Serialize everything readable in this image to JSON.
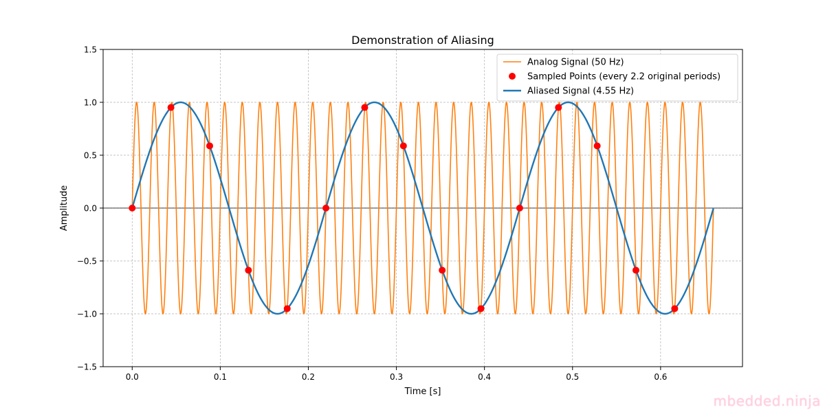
{
  "chart_data": {
    "type": "line",
    "title": "Demonstration of Aliasing",
    "xlabel": "Time [s]",
    "ylabel": "Amplitude",
    "xlim": [
      -0.033,
      0.693
    ],
    "ylim": [
      -1.5,
      1.5
    ],
    "xticks": [
      0.0,
      0.1,
      0.2,
      0.3,
      0.4,
      0.5,
      0.6
    ],
    "xtick_labels": [
      "0.0",
      "0.1",
      "0.2",
      "0.3",
      "0.4",
      "0.5",
      "0.6"
    ],
    "yticks": [
      -1.5,
      -1.0,
      -0.5,
      0.0,
      0.5,
      1.0,
      1.5
    ],
    "ytick_labels": [
      "−1.5",
      "−1.0",
      "−0.5",
      "0.0",
      "0.5",
      "1.0",
      "1.5"
    ],
    "grid": true,
    "zero_line": true,
    "legend_position": "top-right",
    "series": [
      {
        "name": "Analog Signal (50 Hz)",
        "kind": "line",
        "function": "sine",
        "frequency_hz": 50,
        "amplitude": 1,
        "t_start": 0,
        "t_end": 0.66,
        "color": "#ff7f0e"
      },
      {
        "name": "Sampled Points (every 2.2 original periods)",
        "kind": "scatter",
        "color": "#ff0000",
        "x": [
          0.0,
          0.044,
          0.088,
          0.132,
          0.176,
          0.22,
          0.264,
          0.308,
          0.352,
          0.396,
          0.44,
          0.484,
          0.528,
          0.572,
          0.616
        ],
        "y": [
          0.0,
          0.951,
          0.588,
          -0.588,
          -0.951,
          0.0,
          0.951,
          0.588,
          -0.588,
          -0.951,
          0.0,
          0.951,
          0.588,
          -0.588,
          -0.951
        ]
      },
      {
        "name": "Aliased Signal (4.55 Hz)",
        "kind": "line",
        "function": "sine",
        "frequency_hz": 4.545,
        "amplitude": 1,
        "t_start": 0,
        "t_end": 0.66,
        "color": "#1f77b4"
      }
    ]
  },
  "watermark": "mbedded.ninja"
}
